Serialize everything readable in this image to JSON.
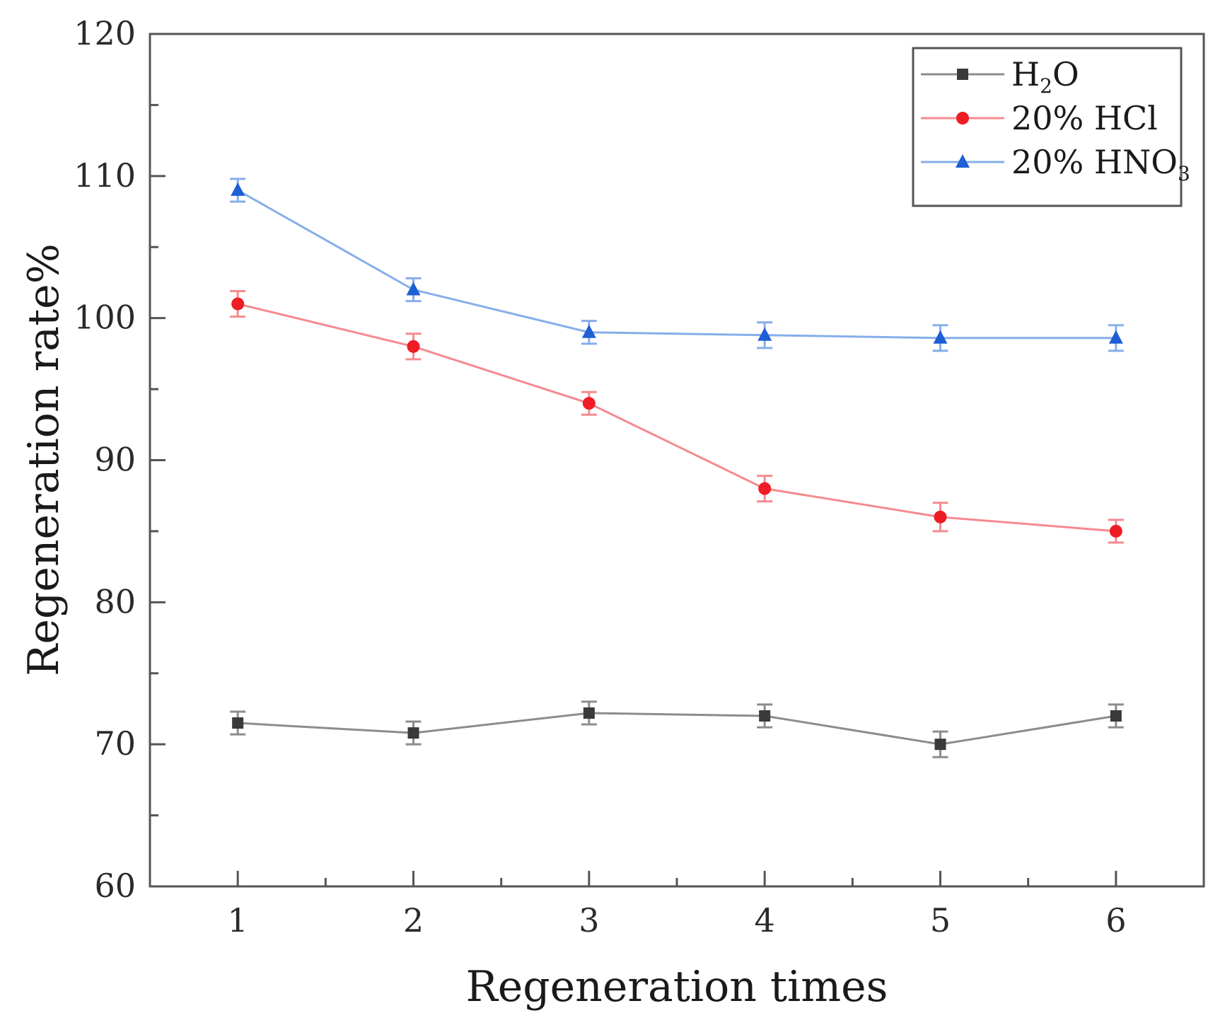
{
  "chart_data": {
    "type": "line",
    "title": "",
    "xlabel": "Regeneration times",
    "ylabel": "Regeneration rate%",
    "x": [
      1,
      2,
      3,
      4,
      5,
      6
    ],
    "xlim": [
      0.5,
      6.5
    ],
    "ylim": [
      60,
      120
    ],
    "xticks": [
      "1",
      "2",
      "3",
      "4",
      "5",
      "6"
    ],
    "yticks": [
      "60",
      "70",
      "80",
      "90",
      "100",
      "110",
      "120"
    ],
    "grid": false,
    "legend_position": "top-right",
    "series": [
      {
        "name": "H₂O",
        "legend_main": "H",
        "legend_sub": "2",
        "legend_tail": "O",
        "marker": "square",
        "color": "#3a3a3a",
        "line_color": "#8c8c8c",
        "values": [
          71.5,
          70.8,
          72.2,
          72.0,
          70.0,
          72.0
        ],
        "errors": [
          0.8,
          0.8,
          0.8,
          0.8,
          0.9,
          0.8
        ]
      },
      {
        "name": "20% HCl",
        "legend_main": "20% HCl",
        "legend_sub": "",
        "legend_tail": "",
        "marker": "circle",
        "color": "#ee1c25",
        "line_color": "#f58a8f",
        "values": [
          101.0,
          98.0,
          94.0,
          88.0,
          86.0,
          85.0
        ],
        "errors": [
          0.9,
          0.9,
          0.8,
          0.9,
          1.0,
          0.8
        ]
      },
      {
        "name": "20% HNO₃",
        "legend_main": "20% HNO",
        "legend_sub": "3",
        "legend_tail": "",
        "marker": "triangle",
        "color": "#1f5fd6",
        "line_color": "#86aeea",
        "values": [
          109.0,
          102.0,
          99.0,
          98.8,
          98.6,
          98.6
        ],
        "errors": [
          0.8,
          0.8,
          0.8,
          0.9,
          0.9,
          0.9
        ]
      }
    ]
  }
}
